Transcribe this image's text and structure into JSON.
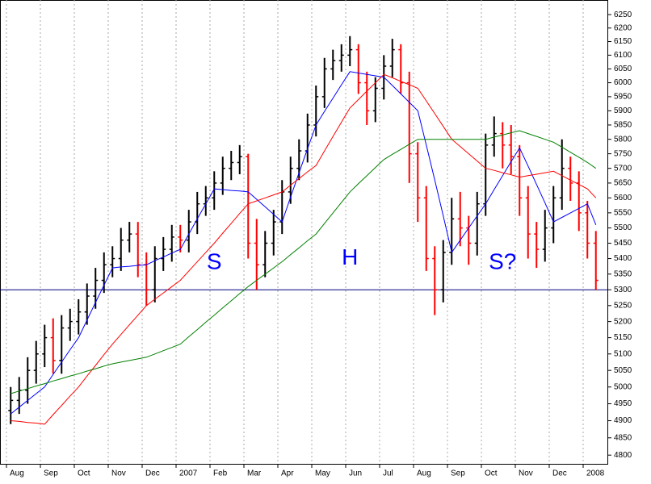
{
  "chart_data": {
    "type": "ohlc",
    "categories": [
      "Aug",
      null,
      null,
      null,
      "Sep",
      null,
      null,
      null,
      "Oct",
      null,
      null,
      null,
      "Nov",
      null,
      null,
      null,
      "Dec",
      null,
      null,
      null,
      "2007",
      null,
      null,
      null,
      "Feb",
      null,
      null,
      null,
      "Mar",
      null,
      null,
      null,
      "Apr",
      null,
      null,
      null,
      "May",
      null,
      null,
      null,
      "Jun",
      null,
      null,
      null,
      "Jul",
      null,
      null,
      null,
      "Aug",
      null,
      null,
      null,
      "Sep",
      null,
      null,
      null,
      "Oct",
      null,
      null,
      null,
      "Nov",
      null,
      null,
      null,
      "Dec",
      null,
      null,
      null,
      "2008",
      null
    ],
    "open": [
      4930,
      4960,
      4990,
      5050,
      5100,
      5150,
      5080,
      5180,
      5200,
      5230,
      5280,
      5330,
      5380,
      5400,
      5460,
      5480,
      5380,
      5300,
      5400,
      5430,
      5470,
      5460,
      5520,
      5580,
      5600,
      5650,
      5700,
      5720,
      5740,
      5450,
      5380,
      5450,
      5520,
      5620,
      5700,
      5760,
      5850,
      5950,
      6050,
      6080,
      6100,
      6120,
      6000,
      5900,
      5980,
      6060,
      6120,
      6000,
      5750,
      5600,
      5400,
      5300,
      5420,
      5530,
      5500,
      5450,
      5580,
      5780,
      5820,
      5780,
      5740,
      5600,
      5480,
      5430,
      5500,
      5600,
      5700,
      5650,
      5550,
      5450
    ],
    "high": [
      5000,
      5030,
      5090,
      5140,
      5190,
      5210,
      5220,
      5240,
      5270,
      5320,
      5370,
      5420,
      5440,
      5500,
      5520,
      5520,
      5420,
      5440,
      5470,
      5510,
      5510,
      5560,
      5620,
      5640,
      5690,
      5740,
      5760,
      5780,
      5750,
      5530,
      5490,
      5560,
      5660,
      5740,
      5800,
      5890,
      5990,
      6090,
      6120,
      6140,
      6170,
      6140,
      6040,
      6020,
      6100,
      6160,
      6140,
      6040,
      5790,
      5640,
      5440,
      5460,
      5600,
      5620,
      5540,
      5620,
      5820,
      5880,
      5860,
      5850,
      5780,
      5640,
      5520,
      5560,
      5640,
      5800,
      5740,
      5690,
      5590,
      5490
    ],
    "low": [
      4890,
      4920,
      4950,
      5010,
      5060,
      5040,
      5040,
      5140,
      5160,
      5190,
      5240,
      5290,
      5340,
      5360,
      5420,
      5340,
      5250,
      5260,
      5360,
      5390,
      5420,
      5420,
      5480,
      5540,
      5560,
      5610,
      5660,
      5680,
      5400,
      5300,
      5340,
      5410,
      5480,
      5580,
      5660,
      5720,
      5810,
      5910,
      6010,
      6040,
      6060,
      5960,
      5850,
      5860,
      5940,
      6020,
      5960,
      5650,
      5520,
      5360,
      5220,
      5260,
      5380,
      5440,
      5380,
      5410,
      5540,
      5740,
      5700,
      5680,
      5540,
      5400,
      5370,
      5390,
      5450,
      5560,
      5590,
      5490,
      5400,
      5300
    ],
    "close": [
      4960,
      4990,
      5050,
      5100,
      5150,
      5080,
      5180,
      5200,
      5230,
      5280,
      5330,
      5380,
      5400,
      5460,
      5480,
      5380,
      5300,
      5400,
      5430,
      5470,
      5460,
      5520,
      5580,
      5600,
      5650,
      5700,
      5720,
      5740,
      5450,
      5380,
      5450,
      5520,
      5620,
      5700,
      5760,
      5850,
      5950,
      6050,
      6080,
      6100,
      6120,
      6000,
      5900,
      5980,
      6060,
      6120,
      6000,
      5750,
      5600,
      5400,
      5300,
      5420,
      5530,
      5500,
      5450,
      5580,
      5780,
      5820,
      5780,
      5740,
      5600,
      5480,
      5430,
      5500,
      5600,
      5700,
      5650,
      5550,
      5450,
      5330
    ],
    "up_color": "#000000",
    "down_color": "#ff0000",
    "moving_averages": [
      {
        "color": "#0000ff",
        "values": [
          4920,
          4940,
          4960,
          4980,
          5000,
          5038,
          5075,
          5113,
          5150,
          5205,
          5260,
          5315,
          5370,
          5373,
          5375,
          5378,
          5380,
          5393,
          5405,
          5418,
          5430,
          5480,
          5530,
          5580,
          5630,
          5628,
          5625,
          5623,
          5620,
          5595,
          5570,
          5545,
          5520,
          5603,
          5685,
          5768,
          5850,
          5898,
          5945,
          5993,
          6040,
          6035,
          6030,
          6025,
          6020,
          5990,
          5960,
          5930,
          5900,
          5780,
          5660,
          5540,
          5420,
          5460,
          5500,
          5540,
          5580,
          5628,
          5675,
          5723,
          5770,
          5708,
          5645,
          5583,
          5520,
          5535,
          5550,
          5565,
          5580,
          5510
        ]
      },
      {
        "color": "#ff0000",
        "values": [
          4900,
          4898,
          4895,
          4893,
          4890,
          4918,
          4945,
          4973,
          5000,
          5033,
          5065,
          5098,
          5130,
          5160,
          5190,
          5220,
          5250,
          5270,
          5290,
          5310,
          5330,
          5360,
          5390,
          5420,
          5450,
          5483,
          5515,
          5548,
          5580,
          5590,
          5600,
          5610,
          5620,
          5643,
          5665,
          5688,
          5710,
          5760,
          5810,
          5860,
          5910,
          5940,
          5970,
          6000,
          6030,
          6018,
          6005,
          5993,
          5980,
          5935,
          5890,
          5845,
          5800,
          5775,
          5750,
          5725,
          5700,
          5693,
          5685,
          5678,
          5670,
          5675,
          5680,
          5685,
          5690,
          5675,
          5660,
          5645,
          5630,
          5600
        ]
      },
      {
        "color": "#008000",
        "values": [
          4980,
          4988,
          4995,
          5003,
          5010,
          5018,
          5025,
          5033,
          5040,
          5048,
          5055,
          5063,
          5070,
          5075,
          5080,
          5085,
          5090,
          5100,
          5110,
          5120,
          5130,
          5153,
          5175,
          5198,
          5220,
          5243,
          5265,
          5288,
          5310,
          5330,
          5350,
          5370,
          5390,
          5413,
          5435,
          5458,
          5480,
          5515,
          5550,
          5585,
          5620,
          5648,
          5675,
          5703,
          5730,
          5748,
          5765,
          5783,
          5800,
          5800,
          5800,
          5800,
          5800,
          5800,
          5800,
          5800,
          5800,
          5808,
          5815,
          5823,
          5830,
          5820,
          5810,
          5800,
          5790,
          5773,
          5755,
          5738,
          5720,
          5700
        ]
      }
    ],
    "hlines": [
      5300
    ],
    "hline_color": "#000080",
    "annotations": [
      {
        "text": "S",
        "category": 24,
        "value": 5385
      },
      {
        "text": "H",
        "category": 40,
        "value": 5400
      },
      {
        "text": "S?",
        "category": 58,
        "value": 5385
      }
    ],
    "annotation_color": "#0000ff",
    "log_scale": true,
    "grid": true,
    "ylim": [
      4775,
      6305
    ],
    "yticks": [
      4800,
      4850,
      4900,
      4950,
      5000,
      5050,
      5100,
      5150,
      5200,
      5250,
      5300,
      5350,
      5400,
      5450,
      5500,
      5550,
      5600,
      5650,
      5700,
      5750,
      5800,
      5850,
      5900,
      5950,
      6000,
      6050,
      6100,
      6150,
      6200,
      6250
    ]
  }
}
